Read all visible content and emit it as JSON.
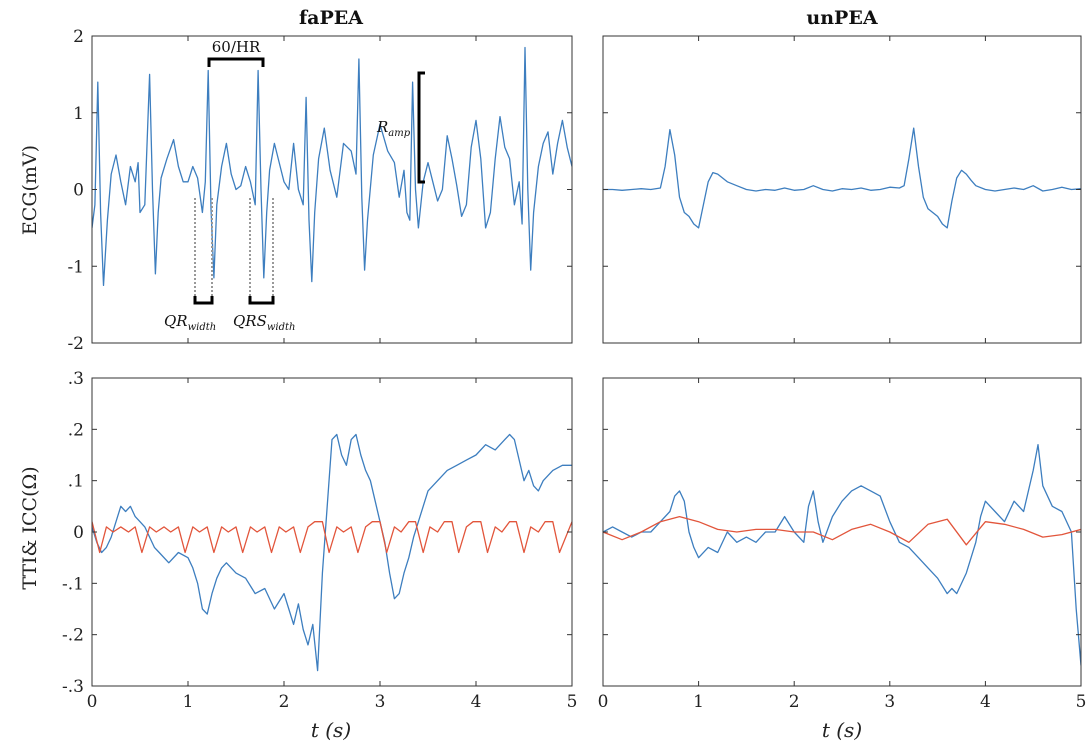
{
  "figure": {
    "col_titles": [
      "faPEA",
      "unPEA"
    ],
    "row_ylabels": [
      "ECG(mV)",
      "TTI& ICC(Ω)"
    ],
    "xlabel": "t (s)",
    "annotations": {
      "hr": "60/HR",
      "r_amp": "R",
      "r_amp_sub": "amp",
      "qr": "QR",
      "qr_sub": "width",
      "qrs": "QRS",
      "qrs_sub": "width"
    }
  },
  "colors": {
    "series_blue": "#3d7ebf",
    "series_red": "#e2553b",
    "annotation": "#000000",
    "dotted": "#999999"
  },
  "chart_data": [
    {
      "type": "line",
      "title": "faPEA",
      "ylabel": "ECG(mV)",
      "xlabel": "",
      "xlim": [
        0,
        5
      ],
      "ylim": [
        -2,
        2
      ],
      "xticks": [
        0,
        1,
        2,
        3,
        4,
        5
      ],
      "yticks": [
        -2,
        -1,
        0,
        1,
        2
      ],
      "show_xticklabels": false,
      "show_yticklabels": true,
      "grid": false,
      "series": [
        {
          "color": "#3d7ebf",
          "x": [
            0,
            0.03,
            0.06,
            0.09,
            0.12,
            0.16,
            0.2,
            0.25,
            0.3,
            0.35,
            0.4,
            0.45,
            0.48,
            0.5,
            0.55,
            0.6,
            0.63,
            0.66,
            0.69,
            0.72,
            0.78,
            0.85,
            0.9,
            0.95,
            1.0,
            1.05,
            1.1,
            1.15,
            1.18,
            1.21,
            1.24,
            1.27,
            1.3,
            1.35,
            1.4,
            1.45,
            1.5,
            1.55,
            1.6,
            1.65,
            1.7,
            1.73,
            1.76,
            1.79,
            1.82,
            1.85,
            1.9,
            1.95,
            2.0,
            2.05,
            2.1,
            2.15,
            2.2,
            2.23,
            2.26,
            2.29,
            2.32,
            2.36,
            2.42,
            2.48,
            2.55,
            2.62,
            2.7,
            2.75,
            2.78,
            2.81,
            2.84,
            2.87,
            2.93,
            3.0,
            3.08,
            3.15,
            3.2,
            3.25,
            3.28,
            3.31,
            3.34,
            3.37,
            3.4,
            3.45,
            3.5,
            3.55,
            3.6,
            3.65,
            3.7,
            3.75,
            3.8,
            3.85,
            3.9,
            3.95,
            4.0,
            4.05,
            4.1,
            4.15,
            4.2,
            4.25,
            4.3,
            4.35,
            4.4,
            4.45,
            4.48,
            4.51,
            4.54,
            4.57,
            4.6,
            4.65,
            4.7,
            4.75,
            4.8,
            4.85,
            4.9,
            4.95,
            5.0
          ],
          "y": [
            -0.5,
            -0.2,
            1.4,
            -0.3,
            -1.25,
            -0.4,
            0.2,
            0.45,
            0.1,
            -0.2,
            0.3,
            0.1,
            0.35,
            -0.3,
            -0.2,
            1.5,
            0.0,
            -1.1,
            -0.3,
            0.15,
            0.4,
            0.65,
            0.3,
            0.1,
            0.1,
            0.3,
            0.15,
            -0.3,
            0.1,
            1.55,
            -0.25,
            -1.15,
            -0.2,
            0.3,
            0.6,
            0.2,
            0.0,
            0.05,
            0.3,
            0.1,
            -0.2,
            1.55,
            0.0,
            -1.15,
            -0.3,
            0.25,
            0.6,
            0.35,
            0.1,
            0.0,
            0.6,
            0.0,
            -0.2,
            1.2,
            -0.4,
            -1.2,
            -0.3,
            0.4,
            0.8,
            0.25,
            -0.1,
            0.6,
            0.5,
            0.2,
            1.7,
            -0.1,
            -1.05,
            -0.4,
            0.45,
            0.85,
            0.5,
            0.35,
            -0.1,
            0.25,
            -0.3,
            -0.4,
            1.4,
            0.0,
            -0.5,
            0.1,
            0.35,
            0.1,
            -0.15,
            0.0,
            0.7,
            0.4,
            0.05,
            -0.35,
            -0.2,
            0.55,
            0.9,
            0.4,
            -0.5,
            -0.3,
            0.4,
            0.95,
            0.55,
            0.4,
            -0.2,
            0.1,
            -0.45,
            1.85,
            0.0,
            -1.05,
            -0.3,
            0.3,
            0.6,
            0.75,
            0.2,
            0.6,
            0.9,
            0.55,
            0.3
          ]
        }
      ]
    },
    {
      "type": "line",
      "title": "unPEA",
      "ylabel": "",
      "xlabel": "",
      "xlim": [
        0,
        5
      ],
      "ylim": [
        -2,
        2
      ],
      "xticks": [
        0,
        1,
        2,
        3,
        4,
        5
      ],
      "yticks": [
        -2,
        -1,
        0,
        1,
        2
      ],
      "show_xticklabels": false,
      "show_yticklabels": false,
      "grid": false,
      "series": [
        {
          "color": "#3d7ebf",
          "x": [
            0,
            0.1,
            0.2,
            0.3,
            0.4,
            0.5,
            0.6,
            0.65,
            0.7,
            0.75,
            0.8,
            0.85,
            0.9,
            0.95,
            1.0,
            1.05,
            1.1,
            1.15,
            1.2,
            1.3,
            1.4,
            1.5,
            1.6,
            1.7,
            1.8,
            1.9,
            2.0,
            2.1,
            2.2,
            2.3,
            2.4,
            2.5,
            2.6,
            2.7,
            2.8,
            2.9,
            3.0,
            3.1,
            3.15,
            3.2,
            3.25,
            3.3,
            3.35,
            3.4,
            3.5,
            3.55,
            3.6,
            3.65,
            3.7,
            3.75,
            3.8,
            3.85,
            3.9,
            4.0,
            4.1,
            4.2,
            4.3,
            4.4,
            4.5,
            4.6,
            4.7,
            4.8,
            4.9,
            5.0
          ],
          "y": [
            0.0,
            0.0,
            -0.01,
            0.0,
            0.01,
            0.0,
            0.02,
            0.3,
            0.78,
            0.45,
            -0.1,
            -0.3,
            -0.35,
            -0.45,
            -0.5,
            -0.2,
            0.1,
            0.22,
            0.2,
            0.1,
            0.05,
            0.0,
            -0.02,
            0.0,
            -0.01,
            0.02,
            -0.01,
            0.0,
            0.05,
            0.0,
            -0.02,
            0.01,
            0.0,
            0.02,
            -0.01,
            0.0,
            0.03,
            0.02,
            0.05,
            0.4,
            0.8,
            0.3,
            -0.1,
            -0.25,
            -0.35,
            -0.45,
            -0.5,
            -0.15,
            0.15,
            0.25,
            0.2,
            0.12,
            0.05,
            0.0,
            -0.02,
            0.0,
            0.02,
            0.0,
            0.05,
            -0.02,
            0.0,
            0.03,
            0.0,
            0.01
          ]
        }
      ]
    },
    {
      "type": "line",
      "title": "",
      "ylabel": "TTI& ICC(Ω)",
      "xlabel": "t (s)",
      "xlim": [
        0,
        5
      ],
      "ylim": [
        -0.3,
        0.3
      ],
      "xticks": [
        0,
        1,
        2,
        3,
        4,
        5
      ],
      "yticks": [
        -0.3,
        -0.2,
        -0.1,
        0,
        0.1,
        0.2,
        0.3
      ],
      "show_xticklabels": true,
      "show_yticklabels": true,
      "grid": false,
      "series": [
        {
          "color": "#3d7ebf",
          "x": [
            0,
            0.05,
            0.1,
            0.15,
            0.2,
            0.25,
            0.3,
            0.35,
            0.4,
            0.45,
            0.5,
            0.55,
            0.6,
            0.65,
            0.7,
            0.8,
            0.9,
            1.0,
            1.05,
            1.1,
            1.15,
            1.2,
            1.25,
            1.3,
            1.35,
            1.4,
            1.5,
            1.6,
            1.7,
            1.8,
            1.9,
            2.0,
            2.05,
            2.1,
            2.15,
            2.2,
            2.25,
            2.3,
            2.35,
            2.4,
            2.45,
            2.5,
            2.55,
            2.6,
            2.65,
            2.7,
            2.75,
            2.8,
            2.85,
            2.9,
            2.95,
            3.0,
            3.05,
            3.1,
            3.15,
            3.2,
            3.25,
            3.3,
            3.35,
            3.4,
            3.45,
            3.5,
            3.6,
            3.7,
            3.8,
            3.9,
            4.0,
            4.1,
            4.2,
            4.3,
            4.35,
            4.4,
            4.45,
            4.5,
            4.55,
            4.6,
            4.65,
            4.7,
            4.8,
            4.9,
            5.0
          ],
          "y": [
            0.01,
            -0.02,
            -0.04,
            -0.03,
            -0.01,
            0.02,
            0.05,
            0.04,
            0.05,
            0.03,
            0.02,
            0.01,
            -0.01,
            -0.03,
            -0.04,
            -0.06,
            -0.04,
            -0.05,
            -0.07,
            -0.1,
            -0.15,
            -0.16,
            -0.12,
            -0.09,
            -0.07,
            -0.06,
            -0.08,
            -0.09,
            -0.12,
            -0.11,
            -0.15,
            -0.12,
            -0.15,
            -0.18,
            -0.14,
            -0.19,
            -0.22,
            -0.18,
            -0.27,
            -0.08,
            0.05,
            0.18,
            0.19,
            0.15,
            0.13,
            0.18,
            0.19,
            0.15,
            0.12,
            0.1,
            0.06,
            0.02,
            -0.02,
            -0.08,
            -0.13,
            -0.12,
            -0.08,
            -0.05,
            -0.01,
            0.02,
            0.05,
            0.08,
            0.1,
            0.12,
            0.13,
            0.14,
            0.15,
            0.17,
            0.16,
            0.18,
            0.19,
            0.18,
            0.14,
            0.1,
            0.12,
            0.09,
            0.08,
            0.1,
            0.12,
            0.13,
            0.13
          ]
        },
        {
          "color": "#e2553b",
          "x": [
            0,
            0.08,
            0.15,
            0.22,
            0.3,
            0.38,
            0.45,
            0.52,
            0.6,
            0.67,
            0.75,
            0.82,
            0.9,
            0.97,
            1.05,
            1.12,
            1.2,
            1.27,
            1.35,
            1.42,
            1.5,
            1.57,
            1.65,
            1.72,
            1.8,
            1.87,
            1.95,
            2.02,
            2.1,
            2.17,
            2.25,
            2.32,
            2.4,
            2.47,
            2.55,
            2.62,
            2.7,
            2.77,
            2.85,
            2.92,
            3.0,
            3.07,
            3.15,
            3.22,
            3.3,
            3.37,
            3.45,
            3.52,
            3.6,
            3.67,
            3.75,
            3.82,
            3.9,
            3.97,
            4.05,
            4.12,
            4.2,
            4.27,
            4.35,
            4.42,
            4.5,
            4.57,
            4.65,
            4.72,
            4.8,
            4.87,
            5.0
          ],
          "y": [
            0.02,
            -0.04,
            0.01,
            0.0,
            0.01,
            0.0,
            0.01,
            -0.04,
            0.01,
            0.0,
            0.01,
            0.0,
            0.01,
            -0.04,
            0.01,
            0.0,
            0.01,
            -0.04,
            0.01,
            0.0,
            0.01,
            -0.04,
            0.01,
            0.0,
            0.01,
            -0.04,
            0.01,
            0.0,
            0.01,
            -0.04,
            0.01,
            0.02,
            0.02,
            -0.04,
            0.01,
            0.0,
            0.01,
            -0.04,
            0.01,
            0.02,
            0.02,
            -0.04,
            0.01,
            0.0,
            0.02,
            0.02,
            -0.04,
            0.01,
            0.0,
            0.02,
            0.02,
            -0.04,
            0.01,
            0.02,
            0.02,
            -0.04,
            0.01,
            0.0,
            0.02,
            0.02,
            -0.04,
            0.01,
            0.0,
            0.02,
            0.02,
            -0.04,
            0.02
          ]
        }
      ]
    },
    {
      "type": "line",
      "title": "",
      "ylabel": "",
      "xlabel": "t (s)",
      "xlim": [
        0,
        5
      ],
      "ylim": [
        -0.3,
        0.3
      ],
      "xticks": [
        0,
        1,
        2,
        3,
        4,
        5
      ],
      "yticks": [
        -0.3,
        -0.2,
        -0.1,
        0,
        0.1,
        0.2,
        0.3
      ],
      "show_xticklabels": true,
      "show_yticklabels": false,
      "grid": false,
      "series": [
        {
          "color": "#3d7ebf",
          "x": [
            0,
            0.1,
            0.2,
            0.3,
            0.4,
            0.5,
            0.6,
            0.7,
            0.75,
            0.8,
            0.85,
            0.9,
            0.95,
            1.0,
            1.1,
            1.2,
            1.3,
            1.4,
            1.5,
            1.6,
            1.7,
            1.8,
            1.9,
            2.0,
            2.1,
            2.15,
            2.2,
            2.25,
            2.3,
            2.4,
            2.5,
            2.6,
            2.7,
            2.8,
            2.9,
            3.0,
            3.1,
            3.2,
            3.3,
            3.4,
            3.5,
            3.6,
            3.65,
            3.7,
            3.8,
            3.9,
            3.95,
            4.0,
            4.1,
            4.2,
            4.3,
            4.4,
            4.5,
            4.55,
            4.6,
            4.7,
            4.8,
            4.9,
            4.95,
            5.0
          ],
          "y": [
            0.0,
            0.01,
            0.0,
            -0.01,
            0.0,
            0.0,
            0.02,
            0.04,
            0.07,
            0.08,
            0.06,
            0.0,
            -0.03,
            -0.05,
            -0.03,
            -0.04,
            0.0,
            -0.02,
            -0.01,
            -0.02,
            0.0,
            0.0,
            0.03,
            0.0,
            -0.02,
            0.05,
            0.08,
            0.02,
            -0.02,
            0.03,
            0.06,
            0.08,
            0.09,
            0.08,
            0.07,
            0.02,
            -0.02,
            -0.03,
            -0.05,
            -0.07,
            -0.09,
            -0.12,
            -0.11,
            -0.12,
            -0.08,
            -0.02,
            0.03,
            0.06,
            0.04,
            0.02,
            0.06,
            0.04,
            0.12,
            0.17,
            0.09,
            0.05,
            0.04,
            0.0,
            -0.15,
            -0.26
          ]
        },
        {
          "color": "#e2553b",
          "x": [
            0,
            0.2,
            0.4,
            0.6,
            0.8,
            1.0,
            1.2,
            1.4,
            1.6,
            1.8,
            2.0,
            2.2,
            2.4,
            2.6,
            2.8,
            3.0,
            3.2,
            3.4,
            3.6,
            3.8,
            4.0,
            4.2,
            4.4,
            4.6,
            4.8,
            5.0
          ],
          "y": [
            0.0,
            -0.015,
            0.0,
            0.02,
            0.03,
            0.02,
            0.005,
            0.0,
            0.005,
            0.005,
            0.0,
            0.0,
            -0.015,
            0.005,
            0.015,
            0.0,
            -0.02,
            0.015,
            0.025,
            -0.025,
            0.02,
            0.015,
            0.005,
            -0.01,
            -0.005,
            0.005
          ]
        }
      ]
    }
  ]
}
